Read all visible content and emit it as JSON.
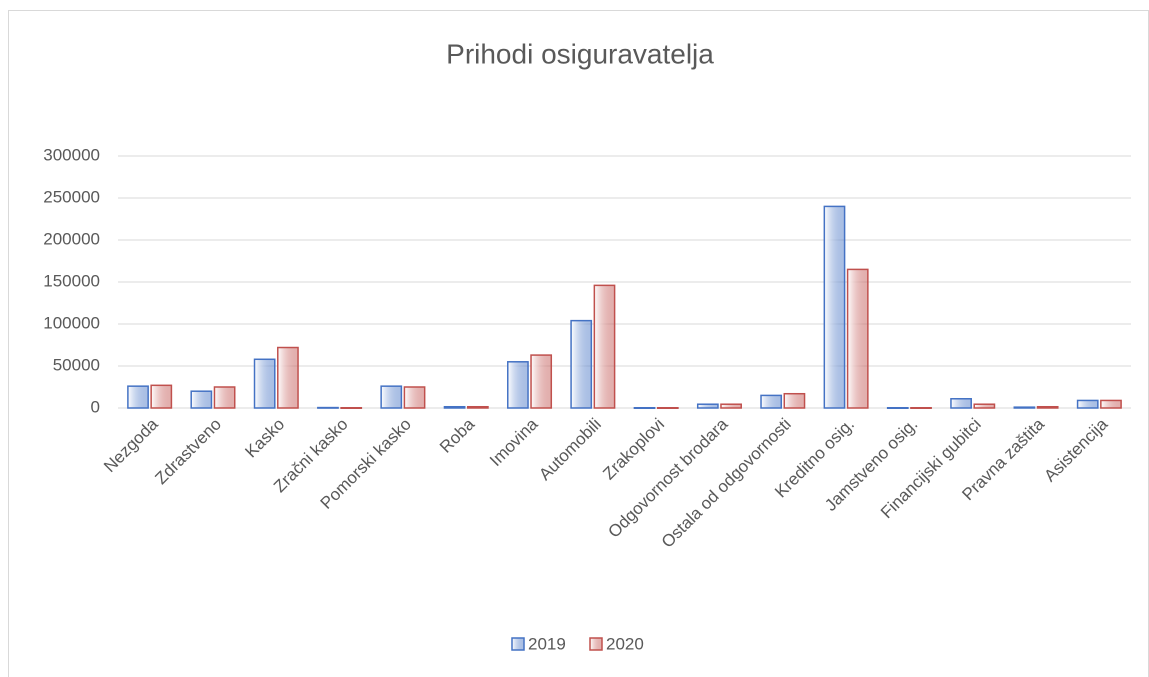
{
  "chart_data": {
    "type": "bar",
    "title": "Prihodi osiguravatelja",
    "categories": [
      "Nezgoda",
      "Zdrastveno",
      "Kasko",
      "Zračni kasko",
      "Pomorski kasko",
      "Roba",
      "Imovina",
      "Automobili",
      "Zrakoplovi",
      "Odgovornost brodara",
      "Ostala od odgovornosti",
      "Kreditno osig.",
      "Jamstveno osig.",
      "Financijski gubitci",
      "Pravna zaštita",
      "Asistencija"
    ],
    "series": [
      {
        "name": "2019",
        "color": "#4472c4",
        "values": [
          26000,
          20000,
          58000,
          500,
          26000,
          1500,
          55000,
          104000,
          300,
          4500,
          15000,
          240000,
          300,
          11000,
          1000,
          9000
        ]
      },
      {
        "name": "2020",
        "color": "#c0504d",
        "values": [
          27000,
          25000,
          72000,
          300,
          25000,
          1500,
          63000,
          146000,
          300,
          4500,
          17000,
          165000,
          300,
          4500,
          1500,
          9000
        ]
      }
    ],
    "ylim": [
      0,
      300000
    ],
    "yticks": [
      0,
      50000,
      100000,
      150000,
      200000,
      250000,
      300000
    ],
    "grid": true,
    "legend": "bottom"
  }
}
